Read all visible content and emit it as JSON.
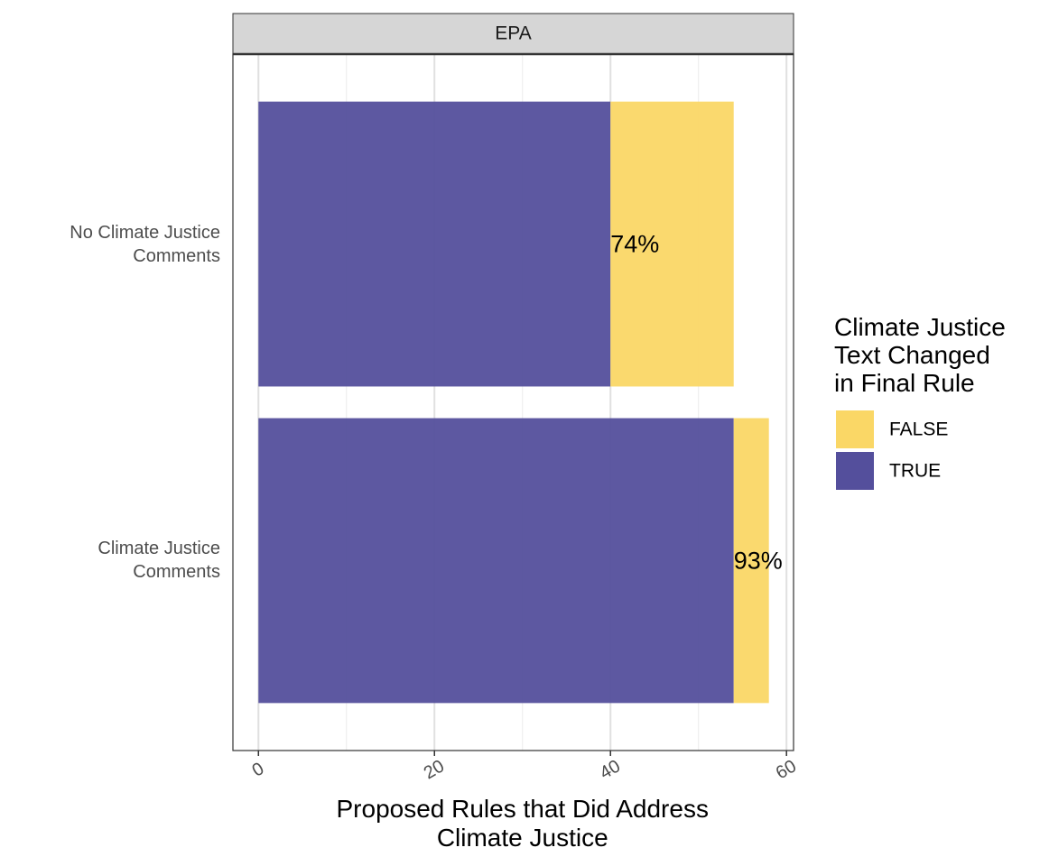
{
  "chart_data": {
    "type": "bar",
    "orientation": "horizontal",
    "stacked": true,
    "facet": "EPA",
    "categories": [
      "No Climate Justice\nComments",
      "Climate Justice\nComments"
    ],
    "series": [
      {
        "name": "TRUE",
        "color": "#544f9c",
        "values": [
          40,
          54
        ]
      },
      {
        "name": "FALSE",
        "color": "#fad766",
        "values": [
          14,
          4
        ]
      }
    ],
    "share_labels": {
      "values": [
        74,
        93
      ],
      "value_labels": [
        "74%",
        "93%"
      ]
    },
    "x_label": "Proposed Rules that Did Address\nClimate Justice",
    "legend_title": "Climate Justice\nText Changed\nin Final Rule",
    "xlim": [
      -2.9,
      60.8
    ],
    "xticks": [
      0,
      20,
      40,
      60
    ],
    "x_minor_grid": [
      10,
      30,
      50
    ],
    "grid": true
  }
}
